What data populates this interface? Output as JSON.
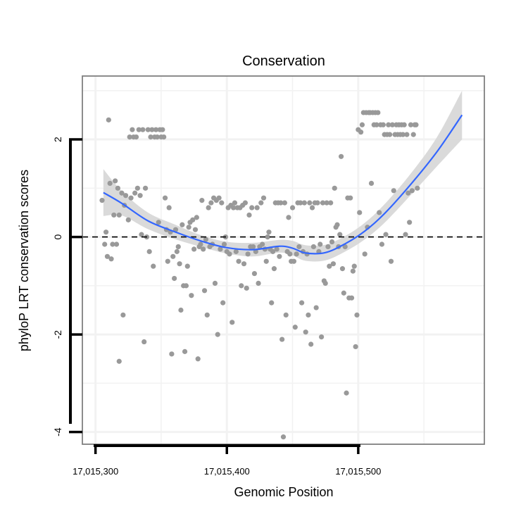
{
  "chart_data": {
    "type": "scatter",
    "title": "Conservation",
    "xlabel": "Genomic Position",
    "ylabel": "phyloP LRT conservation scores",
    "xlim": [
      17015290,
      17015596
    ],
    "ylim": [
      -4.25,
      3.3
    ],
    "x_ticks": [
      17015300,
      17015400,
      17015500
    ],
    "x_tick_labels": [
      "17,015,300",
      "17,015,400",
      "17,015,500"
    ],
    "y_ticks": [
      -4,
      -2,
      0,
      2
    ],
    "y_tick_labels": [
      "-4",
      "-2",
      "0",
      "2"
    ],
    "x_minor_gridlines": [
      17015350,
      17015450,
      17015550
    ],
    "y_minor_gridlines": [
      -3,
      -1,
      1,
      3
    ],
    "grid": true,
    "reference_line": {
      "y": 0,
      "style": "dashed",
      "color": "#000000"
    },
    "colors": {
      "points": "#999999",
      "smooth_line": "#3366ff",
      "confidence_band": "#d6d6d6",
      "panel_border": "#7f7f7f",
      "grid": "#f2f2f2"
    },
    "smooth": {
      "x": [
        17015306,
        17015320,
        17015340,
        17015360,
        17015380,
        17015400,
        17015420,
        17015440,
        17015450,
        17015460,
        17015475,
        17015490,
        17015505,
        17015520,
        17015540,
        17015560,
        17015579
      ],
      "y": [
        0.91,
        0.69,
        0.33,
        0.11,
        -0.08,
        -0.22,
        -0.26,
        -0.19,
        -0.23,
        -0.33,
        -0.32,
        -0.14,
        0.12,
        0.48,
        1.08,
        1.75,
        2.5
      ],
      "lower": [
        0.43,
        0.44,
        0.16,
        -0.04,
        -0.2,
        -0.34,
        -0.4,
        -0.32,
        -0.38,
        -0.49,
        -0.48,
        -0.3,
        -0.05,
        0.29,
        0.86,
        1.45,
        2.0
      ],
      "upper": [
        1.39,
        0.94,
        0.5,
        0.26,
        0.04,
        -0.1,
        -0.12,
        -0.06,
        -0.08,
        -0.17,
        -0.16,
        0.02,
        0.29,
        0.67,
        1.3,
        2.05,
        3.0
      ]
    },
    "points": [
      [
        17015305,
        0.75
      ],
      [
        17015307,
        -0.15
      ],
      [
        17015308,
        0.1
      ],
      [
        17015309,
        -0.4
      ],
      [
        17015310,
        2.4
      ],
      [
        17015311,
        1.1
      ],
      [
        17015312,
        -0.45
      ],
      [
        17015313,
        -0.15
      ],
      [
        17015314,
        0.45
      ],
      [
        17015315,
        1.15
      ],
      [
        17015316,
        -0.15
      ],
      [
        17015317,
        1.0
      ],
      [
        17015318,
        0.45
      ],
      [
        17015318,
        -2.55
      ],
      [
        17015320,
        0.9
      ],
      [
        17015321,
        -1.6
      ],
      [
        17015322,
        0.65
      ],
      [
        17015323,
        0.85
      ],
      [
        17015325,
        0.35
      ],
      [
        17015326,
        2.05
      ],
      [
        17015327,
        0.8
      ],
      [
        17015328,
        2.2
      ],
      [
        17015329,
        2.05
      ],
      [
        17015330,
        0.9
      ],
      [
        17015331,
        2.05
      ],
      [
        17015332,
        1.0
      ],
      [
        17015333,
        2.2
      ],
      [
        17015334,
        0.85
      ],
      [
        17015335,
        0.05
      ],
      [
        17015336,
        2.2
      ],
      [
        17015337,
        -2.15
      ],
      [
        17015338,
        1.0
      ],
      [
        17015339,
        0.0
      ],
      [
        17015340,
        2.2
      ],
      [
        17015341,
        -0.3
      ],
      [
        17015342,
        2.05
      ],
      [
        17015343,
        2.2
      ],
      [
        17015344,
        -0.6
      ],
      [
        17015345,
        2.05
      ],
      [
        17015346,
        2.2
      ],
      [
        17015347,
        2.05
      ],
      [
        17015348,
        0.3
      ],
      [
        17015349,
        2.2
      ],
      [
        17015350,
        2.05
      ],
      [
        17015351,
        2.2
      ],
      [
        17015352,
        2.05
      ],
      [
        17015353,
        0.8
      ],
      [
        17015354,
        0.15
      ],
      [
        17015355,
        -0.5
      ],
      [
        17015356,
        0.6
      ],
      [
        17015357,
        0.1
      ],
      [
        17015358,
        -2.4
      ],
      [
        17015359,
        -0.4
      ],
      [
        17015360,
        -0.85
      ],
      [
        17015361,
        0.15
      ],
      [
        17015362,
        -0.3
      ],
      [
        17015363,
        -0.2
      ],
      [
        17015364,
        -0.55
      ],
      [
        17015365,
        -1.5
      ],
      [
        17015366,
        0.25
      ],
      [
        17015367,
        -1.0
      ],
      [
        17015368,
        -2.35
      ],
      [
        17015369,
        -1.0
      ],
      [
        17015370,
        -0.6
      ],
      [
        17015371,
        0.2
      ],
      [
        17015372,
        0.3
      ],
      [
        17015373,
        -1.2
      ],
      [
        17015374,
        0.35
      ],
      [
        17015375,
        -0.25
      ],
      [
        17015376,
        0.15
      ],
      [
        17015377,
        0.4
      ],
      [
        17015378,
        -2.5
      ],
      [
        17015379,
        -0.2
      ],
      [
        17015380,
        -0.15
      ],
      [
        17015381,
        0.75
      ],
      [
        17015382,
        -0.25
      ],
      [
        17015383,
        -1.1
      ],
      [
        17015384,
        -0.05
      ],
      [
        17015385,
        -1.6
      ],
      [
        17015386,
        0.6
      ],
      [
        17015387,
        -0.2
      ],
      [
        17015388,
        0.7
      ],
      [
        17015389,
        -0.15
      ],
      [
        17015390,
        0.8
      ],
      [
        17015391,
        -0.95
      ],
      [
        17015392,
        0.75
      ],
      [
        17015393,
        -2.0
      ],
      [
        17015394,
        0.8
      ],
      [
        17015395,
        -0.25
      ],
      [
        17015396,
        0.7
      ],
      [
        17015397,
        -1.35
      ],
      [
        17015398,
        -0.15
      ],
      [
        17015399,
        0.0
      ],
      [
        17015400,
        -0.3
      ],
      [
        17015401,
        0.6
      ],
      [
        17015402,
        -0.35
      ],
      [
        17015403,
        0.65
      ],
      [
        17015404,
        -1.75
      ],
      [
        17015405,
        0.6
      ],
      [
        17015406,
        0.7
      ],
      [
        17015407,
        -0.3
      ],
      [
        17015408,
        0.6
      ],
      [
        17015409,
        -0.5
      ],
      [
        17015410,
        0.6
      ],
      [
        17015411,
        -1.0
      ],
      [
        17015412,
        0.65
      ],
      [
        17015413,
        -0.55
      ],
      [
        17015414,
        0.7
      ],
      [
        17015415,
        -1.05
      ],
      [
        17015416,
        -0.35
      ],
      [
        17015417,
        0.45
      ],
      [
        17015418,
        -0.2
      ],
      [
        17015419,
        0.6
      ],
      [
        17015420,
        -0.2
      ],
      [
        17015421,
        -0.75
      ],
      [
        17015422,
        -0.3
      ],
      [
        17015423,
        0.6
      ],
      [
        17015424,
        -0.95
      ],
      [
        17015425,
        -0.2
      ],
      [
        17015426,
        0.7
      ],
      [
        17015427,
        -0.15
      ],
      [
        17015428,
        0.8
      ],
      [
        17015429,
        -0.25
      ],
      [
        17015430,
        -0.5
      ],
      [
        17015431,
        0.0
      ],
      [
        17015432,
        0.1
      ],
      [
        17015433,
        -0.25
      ],
      [
        17015434,
        -1.35
      ],
      [
        17015435,
        -0.3
      ],
      [
        17015436,
        -0.65
      ],
      [
        17015437,
        0.7
      ],
      [
        17015438,
        -0.25
      ],
      [
        17015439,
        0.7
      ],
      [
        17015440,
        -0.4
      ],
      [
        17015441,
        0.7
      ],
      [
        17015442,
        -2.1
      ],
      [
        17015443,
        -4.1
      ],
      [
        17015444,
        0.7
      ],
      [
        17015445,
        -1.6
      ],
      [
        17015446,
        -0.3
      ],
      [
        17015447,
        0.4
      ],
      [
        17015448,
        -0.35
      ],
      [
        17015449,
        -0.5
      ],
      [
        17015450,
        0.6
      ],
      [
        17015451,
        -0.5
      ],
      [
        17015452,
        -1.85
      ],
      [
        17015453,
        -0.35
      ],
      [
        17015454,
        0.7
      ],
      [
        17015455,
        -0.2
      ],
      [
        17015456,
        0.7
      ],
      [
        17015457,
        -1.35
      ],
      [
        17015458,
        -0.3
      ],
      [
        17015459,
        0.7
      ],
      [
        17015460,
        -1.95
      ],
      [
        17015461,
        -0.35
      ],
      [
        17015462,
        -1.6
      ],
      [
        17015463,
        0.7
      ],
      [
        17015464,
        -2.2
      ],
      [
        17015465,
        0.6
      ],
      [
        17015466,
        -0.2
      ],
      [
        17015467,
        0.7
      ],
      [
        17015468,
        -1.45
      ],
      [
        17015469,
        0.7
      ],
      [
        17015470,
        -0.3
      ],
      [
        17015471,
        -0.15
      ],
      [
        17015472,
        -2.05
      ],
      [
        17015473,
        0.7
      ],
      [
        17015474,
        -0.9
      ],
      [
        17015475,
        -0.95
      ],
      [
        17015476,
        0.7
      ],
      [
        17015477,
        -0.2
      ],
      [
        17015478,
        -0.6
      ],
      [
        17015479,
        0.7
      ],
      [
        17015480,
        -0.1
      ],
      [
        17015481,
        -0.55
      ],
      [
        17015482,
        1.0
      ],
      [
        17015483,
        0.2
      ],
      [
        17015484,
        0.25
      ],
      [
        17015485,
        -0.2
      ],
      [
        17015486,
        0.05
      ],
      [
        17015487,
        1.65
      ],
      [
        17015488,
        -0.65
      ],
      [
        17015489,
        -1.15
      ],
      [
        17015490,
        -0.2
      ],
      [
        17015491,
        -3.2
      ],
      [
        17015492,
        0.8
      ],
      [
        17015493,
        -1.25
      ],
      [
        17015494,
        0.8
      ],
      [
        17015495,
        -1.25
      ],
      [
        17015496,
        -0.7
      ],
      [
        17015497,
        -0.6
      ],
      [
        17015498,
        -2.25
      ],
      [
        17015499,
        -1.6
      ],
      [
        17015500,
        2.2
      ],
      [
        17015501,
        0.5
      ],
      [
        17015502,
        2.15
      ],
      [
        17015503,
        2.3
      ],
      [
        17015504,
        2.55
      ],
      [
        17015505,
        -0.35
      ],
      [
        17015506,
        2.55
      ],
      [
        17015507,
        0.2
      ],
      [
        17015508,
        2.55
      ],
      [
        17015509,
        2.55
      ],
      [
        17015510,
        1.1
      ],
      [
        17015511,
        2.55
      ],
      [
        17015512,
        2.3
      ],
      [
        17015513,
        2.55
      ],
      [
        17015514,
        2.3
      ],
      [
        17015515,
        2.55
      ],
      [
        17015516,
        0.5
      ],
      [
        17015517,
        2.3
      ],
      [
        17015518,
        -0.15
      ],
      [
        17015519,
        2.3
      ],
      [
        17015520,
        2.1
      ],
      [
        17015521,
        0.05
      ],
      [
        17015522,
        2.1
      ],
      [
        17015523,
        2.3
      ],
      [
        17015524,
        2.1
      ],
      [
        17015525,
        -0.5
      ],
      [
        17015526,
        2.3
      ],
      [
        17015527,
        0.95
      ],
      [
        17015528,
        2.1
      ],
      [
        17015529,
        2.3
      ],
      [
        17015530,
        2.1
      ],
      [
        17015531,
        2.3
      ],
      [
        17015532,
        2.1
      ],
      [
        17015533,
        2.3
      ],
      [
        17015534,
        2.1
      ],
      [
        17015535,
        2.3
      ],
      [
        17015536,
        0.05
      ],
      [
        17015537,
        2.1
      ],
      [
        17015538,
        0.9
      ],
      [
        17015539,
        0.3
      ],
      [
        17015540,
        2.3
      ],
      [
        17015541,
        0.95
      ],
      [
        17015542,
        2.1
      ],
      [
        17015543,
        2.3
      ],
      [
        17015544,
        2.3
      ],
      [
        17015545,
        1.0
      ]
    ]
  }
}
